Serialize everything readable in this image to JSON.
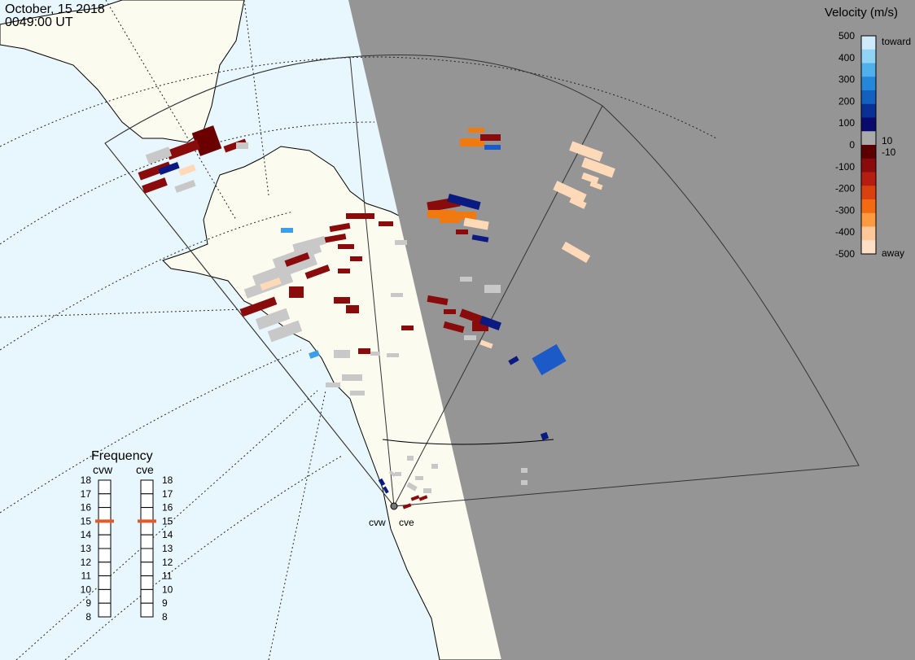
{
  "header": {
    "date": "October, 15 2018",
    "time": "0049:00 UT"
  },
  "colorbar": {
    "title": "Velocity (m/s)",
    "ticks": [
      "500",
      "400",
      "300",
      "200",
      "100",
      "0",
      "-100",
      "-200",
      "-300",
      "-400",
      "-500"
    ],
    "label_pos_small": "10",
    "label_neg_small": "-10",
    "label_toward": "toward",
    "label_away": "away",
    "colors": [
      "#cfeafa",
      "#8fd3f5",
      "#4fb0ec",
      "#2488da",
      "#1460c0",
      "#0a2f95",
      "#0a0a6e",
      "#aaaaaa",
      "#5a0000",
      "#8a0b0b",
      "#b51d10",
      "#d9420f",
      "#f26a12",
      "#ff9a40",
      "#ffc89a",
      "#ffe0c6"
    ]
  },
  "frequency": {
    "title": "Frequency",
    "radars": [
      "cvw",
      "cve"
    ],
    "levels": [
      "18",
      "17",
      "16",
      "15",
      "14",
      "13",
      "12",
      "11",
      "10",
      "9",
      "8"
    ],
    "active_mhz": 15,
    "marker_color": "#e05a2a"
  },
  "sites": {
    "west_label": "cvw",
    "east_label": "cve"
  },
  "map": {
    "ocean_color": "#e8f6fd",
    "land_color": "#fbfbef",
    "night_color": "#959595"
  }
}
